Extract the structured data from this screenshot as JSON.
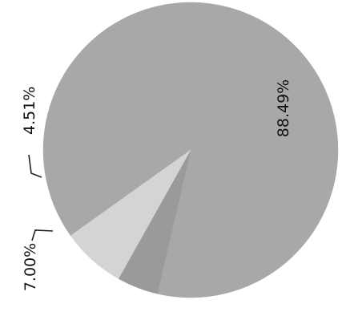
{
  "chart_data": {
    "type": "pie",
    "slices": [
      {
        "label": "88.49%",
        "value": 88.49,
        "color": "#a8a8a8"
      },
      {
        "label": "4.51%",
        "value": 4.51,
        "color": "#9a9a9a"
      },
      {
        "label": "7.00%",
        "value": 7.0,
        "color": "#d4d4d4"
      }
    ],
    "legend": "none"
  }
}
